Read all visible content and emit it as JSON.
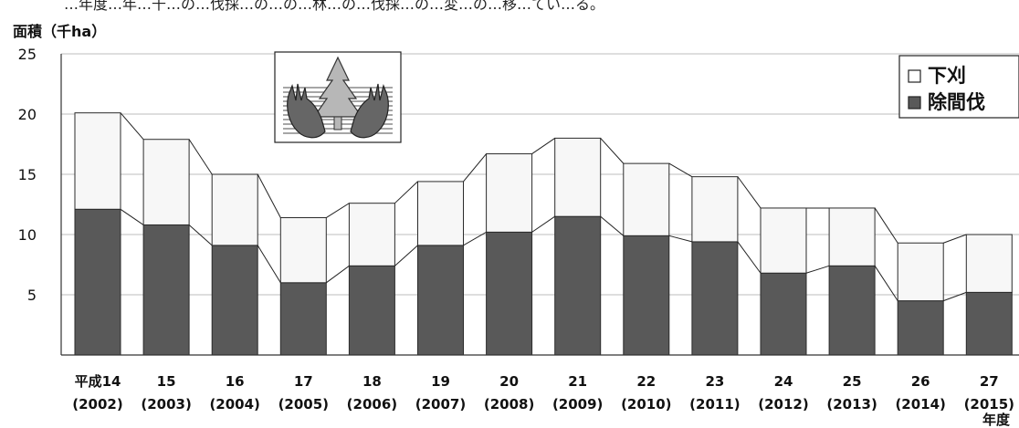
{
  "page": {
    "top_caption": "…年度…年…千…の…伐採…の…の…林…の…伐採…の…変…の…移…てい…る。"
  },
  "chart_data": {
    "type": "bar",
    "stacked": true,
    "unit_label": "面積（千ha）",
    "x_unit_label": "年度",
    "ylim": [
      0,
      25
    ],
    "yticks": [
      "5",
      "10",
      "15",
      "20",
      "25"
    ],
    "categories": [
      [
        "平成14",
        "(2002)"
      ],
      [
        "15",
        "(2003)"
      ],
      [
        "16",
        "(2004)"
      ],
      [
        "17",
        "(2005)"
      ],
      [
        "18",
        "(2006)"
      ],
      [
        "19",
        "(2007)"
      ],
      [
        "20",
        "(2008)"
      ],
      [
        "21",
        "(2009)"
      ],
      [
        "22",
        "(2010)"
      ],
      [
        "23",
        "(2011)"
      ],
      [
        "24",
        "(2012)"
      ],
      [
        "25",
        "(2013)"
      ],
      [
        "26",
        "(2014)"
      ],
      [
        "27",
        "(2015)"
      ]
    ],
    "series": [
      {
        "name": "除間伐",
        "values": [
          12.1,
          10.8,
          9.1,
          6.0,
          7.4,
          9.1,
          10.2,
          11.5,
          9.9,
          9.4,
          6.8,
          7.4,
          4.5,
          5.2
        ],
        "color": "#595959"
      },
      {
        "name": "下刈",
        "values": [
          8.0,
          7.1,
          5.9,
          5.4,
          5.2,
          5.3,
          6.5,
          6.5,
          6.0,
          5.4,
          5.4,
          4.8,
          4.8,
          4.8
        ],
        "color": "#f7f7f7"
      }
    ],
    "legend": {
      "position": "top-right",
      "items": [
        {
          "marker": "□",
          "label": "下刈"
        },
        {
          "marker": "■",
          "label": "除間伐"
        }
      ]
    },
    "grid": true,
    "connector_lines": true,
    "illustration": "tree-in-hands-icon"
  }
}
